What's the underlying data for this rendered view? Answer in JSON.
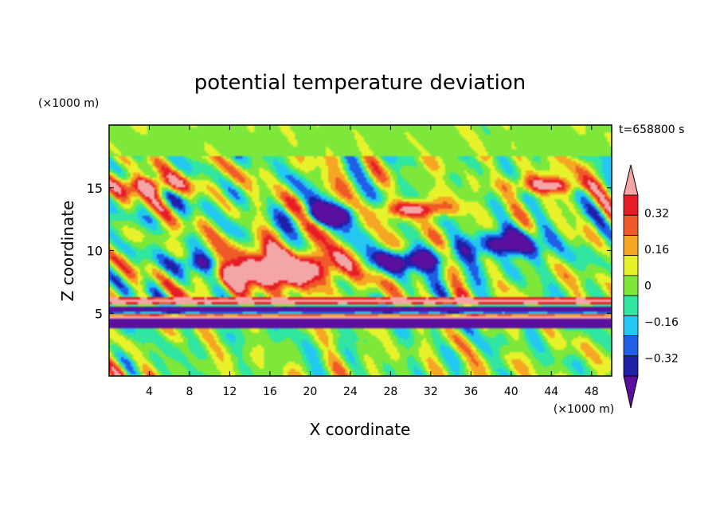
{
  "chart_data": {
    "type": "heatmap",
    "title": "potential temperature deviation",
    "xlabel": "X coordinate",
    "ylabel": "Z coordinate",
    "x_unit": "(×1000 m)",
    "z_unit": "(×1000 m)",
    "time_label": "t=658800 s",
    "xlim": [
      0,
      50
    ],
    "zlim": [
      0,
      20
    ],
    "x_ticks": [
      "4",
      "8",
      "12",
      "16",
      "20",
      "24",
      "28",
      "32",
      "36",
      "40",
      "44",
      "48"
    ],
    "z_ticks": [
      "5",
      "10",
      "15"
    ],
    "colorbar": {
      "tick_labels": [
        "0.32",
        "0.16",
        "0",
        "−0.16",
        "−0.32"
      ],
      "tick_values": [
        0.32,
        0.16,
        0,
        -0.16,
        -0.32
      ],
      "range": [
        -0.4,
        0.4
      ],
      "colors": [
        "#5a0f9e",
        "#1f1fa8",
        "#1e5fe6",
        "#22c8f2",
        "#30e6a0",
        "#7ee83a",
        "#e8f22a",
        "#f5a623",
        "#ef5a28",
        "#e81c24",
        "#f4a6a6"
      ]
    }
  }
}
